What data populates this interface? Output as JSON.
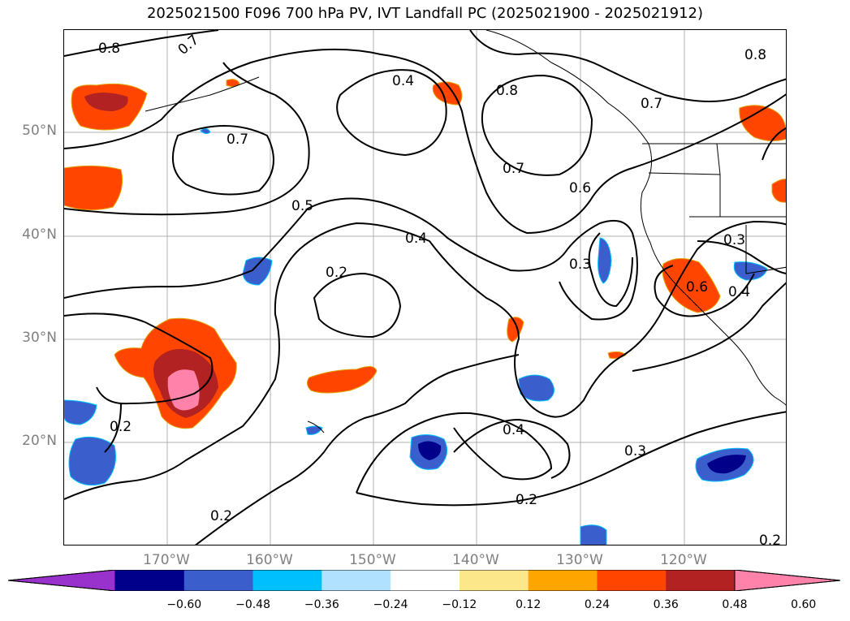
{
  "title": "2025021500 F096 700 hPa PV, IVT Landfall PC (2025021900 - 2025021912)",
  "lat_labels": [
    "50°N",
    "40°N",
    "30°N",
    "20°N"
  ],
  "lon_labels": [
    "170°W",
    "160°W",
    "150°W",
    "140°W",
    "130°W",
    "120°W"
  ],
  "contour_labels": [
    "0.8",
    "0.7",
    "0.4",
    "0.8",
    "0.7",
    "0.8",
    "0.7",
    "0.5",
    "0.7",
    "0.6",
    "0.4",
    "0.3",
    "0.3",
    "0.2",
    "0.6",
    "0.4",
    "0.2",
    "0.4",
    "0.3",
    "0.2",
    "0.2",
    "0.2"
  ],
  "colorbar": {
    "ticks": [
      "−0.60",
      "−0.48",
      "−0.36",
      "−0.24",
      "−0.12",
      "0.12",
      "0.24",
      "0.36",
      "0.48",
      "0.60"
    ],
    "colors": [
      "#9932cc",
      "#00008b",
      "#3a5fcd",
      "#00bfff",
      "#b0e2ff",
      "#ffffff",
      "#fce78a",
      "#ffa500",
      "#ff4500",
      "#b22222",
      "#ff82ab"
    ]
  },
  "chart_data": {
    "type": "map",
    "projection": "PlateCarree",
    "lon_range": [
      "180°W",
      "110°W"
    ],
    "lat_range": [
      "10°N",
      "60°N"
    ],
    "grid": true,
    "fields": [
      "700 hPa PV (contours)",
      "IVT Landfall PC (shaded)"
    ],
    "contour_levels": [
      0.2,
      0.3,
      0.4,
      0.5,
      0.6,
      0.7,
      0.8
    ],
    "shade_levels": [
      -0.6,
      -0.48,
      -0.36,
      -0.24,
      -0.12,
      0.12,
      0.24,
      0.36,
      0.48,
      0.6
    ]
  }
}
